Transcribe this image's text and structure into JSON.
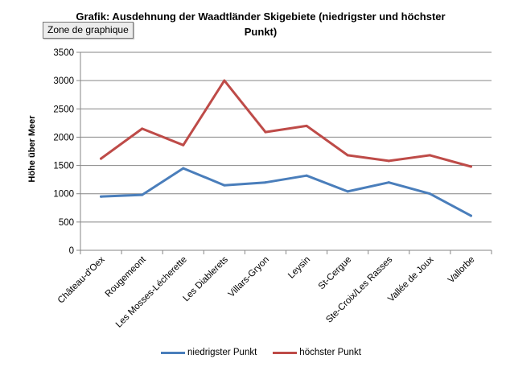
{
  "tooltip": "Zone de graphique",
  "chart_data": {
    "type": "line",
    "title": "Grafik: Ausdehnung der Waadtländer Skigebiete (niedrigster und höchster Punkt)",
    "xlabel": "",
    "ylabel": "Höhe über Meer",
    "ylim": [
      0,
      3500
    ],
    "yticks": [
      "0",
      "500",
      "1000",
      "1500",
      "2000",
      "2500",
      "3000",
      "3500"
    ],
    "grid": true,
    "legend_position": "bottom",
    "categories": [
      "Château-d'Oex",
      "Rougemeont",
      "Les Mosses-Lécherette",
      "Les Diablerets",
      "Villars-Gryon",
      "Leysin",
      "St-Cergue",
      "Ste-Croix/Les Rasses",
      "Vallée de Joux",
      "Vallorbe"
    ],
    "series": [
      {
        "name": "niedrigster Punkt",
        "color": "#4a7ebb",
        "values": [
          950,
          980,
          1450,
          1150,
          1200,
          1320,
          1040,
          1200,
          1000,
          610
        ]
      },
      {
        "name": "höchster Punkt",
        "color": "#be4b48",
        "values": [
          1620,
          2150,
          1860,
          3000,
          2090,
          2200,
          1680,
          1580,
          1680,
          1480
        ]
      }
    ]
  }
}
